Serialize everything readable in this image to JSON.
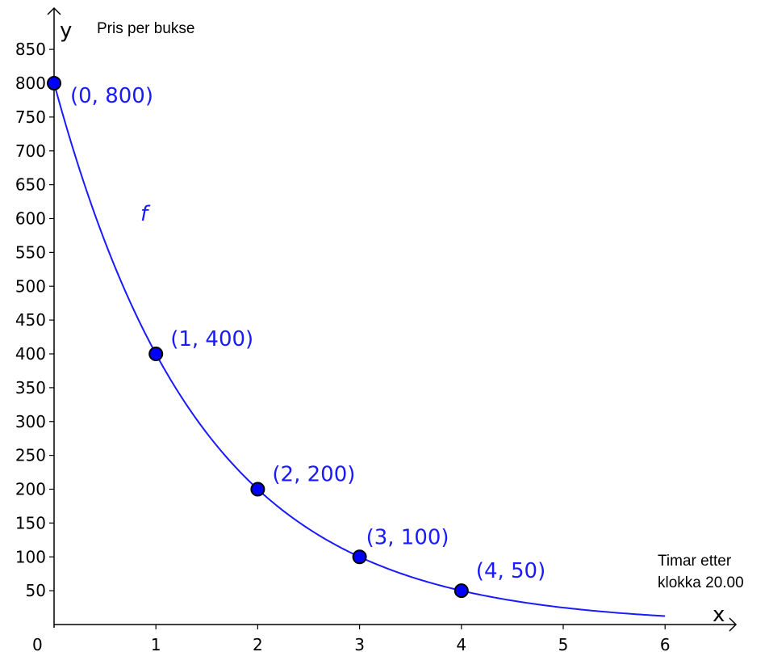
{
  "chart_data": {
    "type": "line",
    "x_axis_letter": "x",
    "y_axis_letter": "y",
    "x_axis_title": [
      "Timar etter",
      "klokka 20.00"
    ],
    "y_axis_title": "Pris per bukse",
    "function_label": "f",
    "origin_label": "0",
    "x_ticks": [
      "1",
      "2",
      "3",
      "4",
      "5",
      "6"
    ],
    "y_ticks": [
      "50",
      "100",
      "150",
      "200",
      "250",
      "300",
      "350",
      "400",
      "450",
      "500",
      "550",
      "600",
      "650",
      "700",
      "750",
      "800",
      "850"
    ],
    "xlim": [
      0,
      6.8
    ],
    "ylim": [
      0,
      890
    ],
    "curve": {
      "formula": "800 * 0.5^x",
      "x_range": [
        0,
        6
      ]
    },
    "points": [
      {
        "x": 0,
        "y": 800,
        "label": "(0, 800)"
      },
      {
        "x": 1,
        "y": 400,
        "label": "(1, 400)"
      },
      {
        "x": 2,
        "y": 200,
        "label": "(2, 200)"
      },
      {
        "x": 3,
        "y": 100,
        "label": "(3, 100)"
      },
      {
        "x": 4,
        "y": 50,
        "label": "(4, 50)"
      }
    ],
    "colors": {
      "curve": "#1a1aff",
      "point_fill": "#0000ff",
      "point_stroke": "#000000",
      "axis": "#000000"
    },
    "grid": false
  }
}
